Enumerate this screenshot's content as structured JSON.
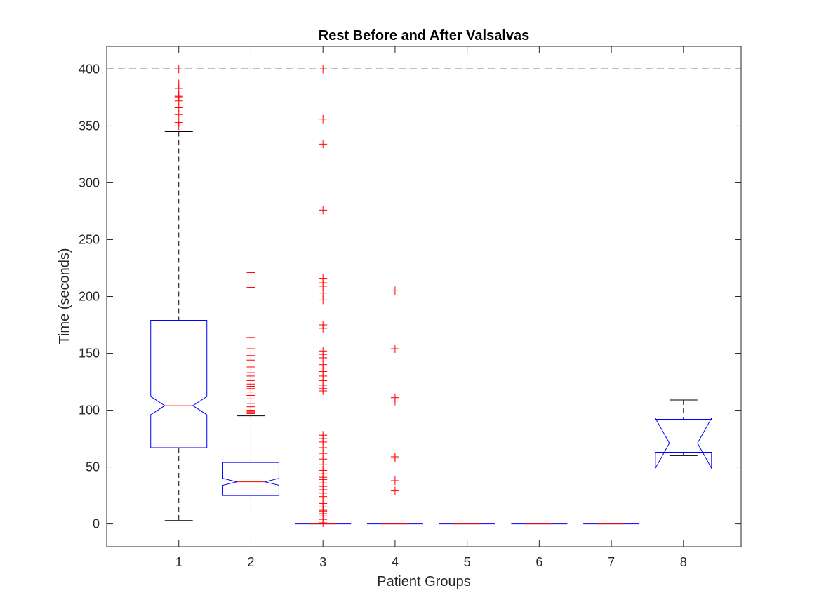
{
  "chart_data": {
    "type": "boxplot",
    "title": "Rest Before and After Valsalvas",
    "xlabel": "Patient Groups",
    "ylabel": "Time (seconds)",
    "ylim": [
      -20,
      420
    ],
    "xlim": [
      0,
      8.8
    ],
    "yticks": [
      0,
      50,
      100,
      150,
      200,
      250,
      300,
      350,
      400
    ],
    "categories": [
      "1",
      "2",
      "3",
      "4",
      "5",
      "6",
      "7",
      "8"
    ],
    "reference_line": {
      "y": 400,
      "style": "dashed"
    },
    "notched": true,
    "colors": {
      "box": "#0000ff",
      "median": "#ff0000",
      "whisker": "#000000",
      "outlier": "#ff0000",
      "axis": "#262626"
    },
    "boxes": [
      {
        "group": "1",
        "q1": 67,
        "median": 104,
        "q3": 179,
        "notch_low": 96,
        "notch_high": 112,
        "whisker_low": 3,
        "whisker_high": 345,
        "outliers": [
          350,
          353,
          360,
          366,
          372,
          375,
          376,
          377,
          383,
          387,
          400
        ]
      },
      {
        "group": "2",
        "q1": 25,
        "median": 37,
        "q3": 54,
        "notch_low": 34,
        "notch_high": 40,
        "whisker_low": 13,
        "whisker_high": 95,
        "outliers": [
          97,
          98,
          99,
          100,
          103,
          106,
          110,
          113,
          116,
          119,
          121,
          123,
          126,
          130,
          133,
          138,
          144,
          148,
          154,
          164,
          208,
          221,
          400
        ]
      },
      {
        "group": "3",
        "q1": 0,
        "median": 0,
        "q3": 0,
        "notch_low": 0,
        "notch_high": 0,
        "whisker_low": 0,
        "whisker_high": 0,
        "outliers": [
          1,
          4,
          7,
          9,
          11,
          12,
          13,
          15,
          18,
          21,
          24,
          27,
          30,
          33,
          36,
          39,
          41,
          44,
          47,
          52,
          57,
          62,
          67,
          72,
          75,
          78,
          117,
          119,
          122,
          126,
          130,
          134,
          137,
          140,
          146,
          149,
          152,
          172,
          175,
          197,
          203,
          209,
          212,
          216,
          276,
          334,
          356,
          400
        ]
      },
      {
        "group": "4",
        "q1": 0,
        "median": 0,
        "q3": 0,
        "notch_low": 0,
        "notch_high": 0,
        "whisker_low": 0,
        "whisker_high": 0,
        "outliers": [
          29,
          38,
          58,
          59,
          108,
          111,
          154,
          205
        ]
      },
      {
        "group": "5",
        "q1": 0,
        "median": 0,
        "q3": 0,
        "notch_low": 0,
        "notch_high": 0,
        "whisker_low": 0,
        "whisker_high": 0,
        "outliers": []
      },
      {
        "group": "6",
        "q1": 0,
        "median": 0,
        "q3": 0,
        "notch_low": 0,
        "notch_high": 0,
        "whisker_low": 0,
        "whisker_high": 0,
        "outliers": []
      },
      {
        "group": "7",
        "q1": 0,
        "median": 0,
        "q3": 0,
        "notch_low": 0,
        "notch_high": 0,
        "whisker_low": 0,
        "whisker_high": 0,
        "outliers": []
      },
      {
        "group": "8",
        "q1": 63,
        "median": 71,
        "q3": 92,
        "notch_low": 49,
        "notch_high": 93,
        "whisker_low": 60,
        "whisker_high": 109,
        "outliers": []
      }
    ]
  }
}
